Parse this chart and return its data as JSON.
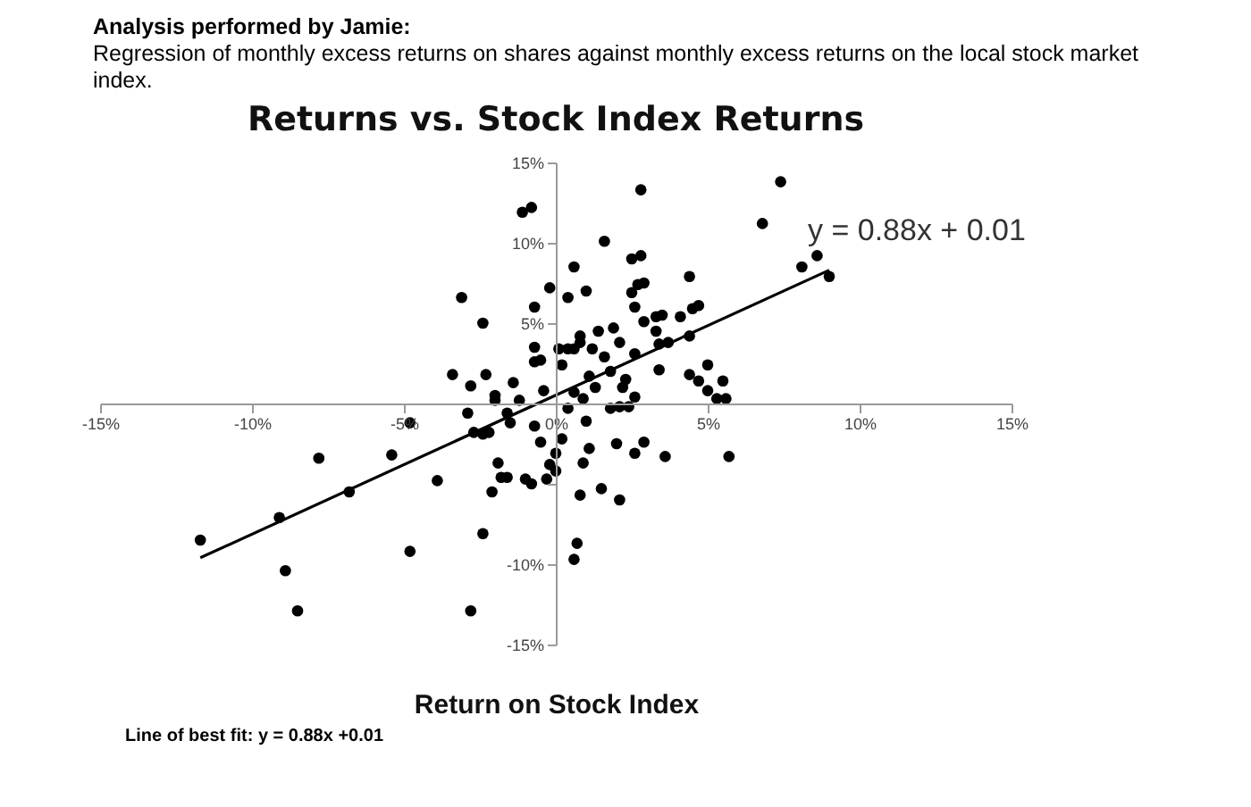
{
  "chart_data": {
    "type": "scatter",
    "title": "Returns vs. Stock Index Returns",
    "xlabel": "Return on Stock Index",
    "annotations": [
      "Analysis performed by Jamie:",
      "Regression of monthly excess returns on shares against monthly excess returns on the local stock market index.",
      {
        "text": "y = 0.88x + 0.01",
        "x": 9.0,
        "y": 8.3
      },
      "Line of best fit: y = 0.88x +0.01"
    ],
    "xlim": [
      -15,
      15
    ],
    "ylim": [
      -15,
      15
    ],
    "xticks": [
      {
        "value": -15,
        "label": "-15%"
      },
      {
        "value": -10,
        "label": "-10%"
      },
      {
        "value": -5,
        "label": "-5%"
      },
      {
        "value": 0,
        "label": "0%"
      },
      {
        "value": 5,
        "label": "5%"
      },
      {
        "value": 10,
        "label": "10%"
      },
      {
        "value": 15,
        "label": "15%"
      }
    ],
    "yticks": [
      {
        "value": -15,
        "label": "-15%"
      },
      {
        "value": -10,
        "label": "-10%"
      },
      {
        "value": -5,
        "label": null
      },
      {
        "value": 0,
        "label": null
      },
      {
        "value": 5,
        "label": "5%"
      },
      {
        "value": 10,
        "label": "10%"
      },
      {
        "value": 15,
        "label": "15%"
      }
    ],
    "marker": "circle",
    "series": [
      {
        "color": "#000000",
        "x": [
          -11.7,
          -9.1,
          -8.9,
          -8.5,
          -7.8,
          -6.8,
          -5.4,
          -4.8,
          -4.8,
          -3.9,
          -3.1,
          -2.4,
          -3.4,
          -2.8,
          -2.4,
          -2.9,
          -2.8,
          -2.3,
          -2.7,
          -2.4,
          -2.2,
          -2.1,
          -1.9,
          -1.8,
          -1.6,
          -2.0,
          -2.0,
          -1.6,
          -1.5,
          -1.4,
          -1.2,
          -1.0,
          -0.8,
          -1.1,
          -0.8,
          -0.7,
          -0.2,
          -0.7,
          -0.7,
          -0.5,
          -0.4,
          -0.7,
          -0.5,
          -0.3,
          -0.2,
          0.0,
          0.0,
          0.2,
          0.4,
          0.2,
          0.1,
          0.4,
          0.6,
          0.4,
          1.0,
          0.6,
          0.8,
          0.8,
          0.6,
          0.9,
          1.0,
          1.1,
          0.9,
          0.8,
          0.7,
          0.6,
          1.1,
          1.2,
          1.4,
          1.6,
          1.3,
          1.6,
          1.8,
          1.5,
          1.8,
          1.9,
          2.1,
          2.2,
          2.3,
          2.1,
          2.1,
          2.0,
          2.4,
          2.5,
          2.5,
          2.8,
          2.7,
          2.9,
          2.8,
          2.6,
          2.6,
          2.6,
          2.6,
          2.9,
          2.9,
          3.3,
          3.5,
          3.3,
          3.4,
          3.4,
          3.7,
          3.6,
          4.1,
          4.4,
          4.4,
          4.5,
          4.7,
          4.4,
          4.7,
          5.0,
          5.0,
          5.3,
          5.5,
          5.6,
          5.7,
          6.8,
          7.4,
          8.1,
          8.6,
          9.0
        ],
        "values": [
          -8.5,
          -7.1,
          -10.4,
          -12.9,
          -3.4,
          -5.5,
          -3.2,
          -9.2,
          -1.2,
          -4.8,
          6.6,
          5.0,
          1.8,
          -12.9,
          -8.1,
          -0.6,
          1.1,
          1.8,
          -1.8,
          -1.9,
          -1.8,
          -5.5,
          -3.7,
          -4.6,
          -4.6,
          0.5,
          0.2,
          -0.6,
          -1.2,
          1.3,
          0.2,
          -4.7,
          -5.0,
          11.9,
          12.2,
          6.0,
          7.2,
          3.5,
          2.6,
          2.7,
          0.8,
          -1.4,
          -2.4,
          -4.7,
          -3.8,
          -4.2,
          -3.1,
          -2.2,
          -0.3,
          2.4,
          3.4,
          3.4,
          8.5,
          6.6,
          7.0,
          0.7,
          3.8,
          4.2,
          3.4,
          0.3,
          -1.1,
          -2.8,
          -3.7,
          -5.7,
          -8.7,
          -9.7,
          1.7,
          3.4,
          4.5,
          10.1,
          1.0,
          2.9,
          2.0,
          -5.3,
          -0.3,
          4.7,
          3.8,
          1.0,
          1.5,
          -0.2,
          -6.0,
          -2.5,
          -0.2,
          6.9,
          9.0,
          13.3,
          7.4,
          7.5,
          9.2,
          6.0,
          3.1,
          0.4,
          -3.1,
          -2.4,
          5.1,
          5.4,
          5.5,
          4.5,
          2.1,
          3.7,
          3.8,
          -3.3,
          5.4,
          7.9,
          4.2,
          5.9,
          6.1,
          1.8,
          1.4,
          2.4,
          0.8,
          0.3,
          1.4,
          0.3,
          -3.3,
          11.2,
          13.8,
          8.5,
          9.2,
          7.9
        ]
      },
      {
        "type": "line",
        "marker": "none",
        "color": "#000000",
        "x": [
          -11.7,
          9.0
        ],
        "values": [
          -9.6,
          8.3
        ]
      }
    ]
  }
}
